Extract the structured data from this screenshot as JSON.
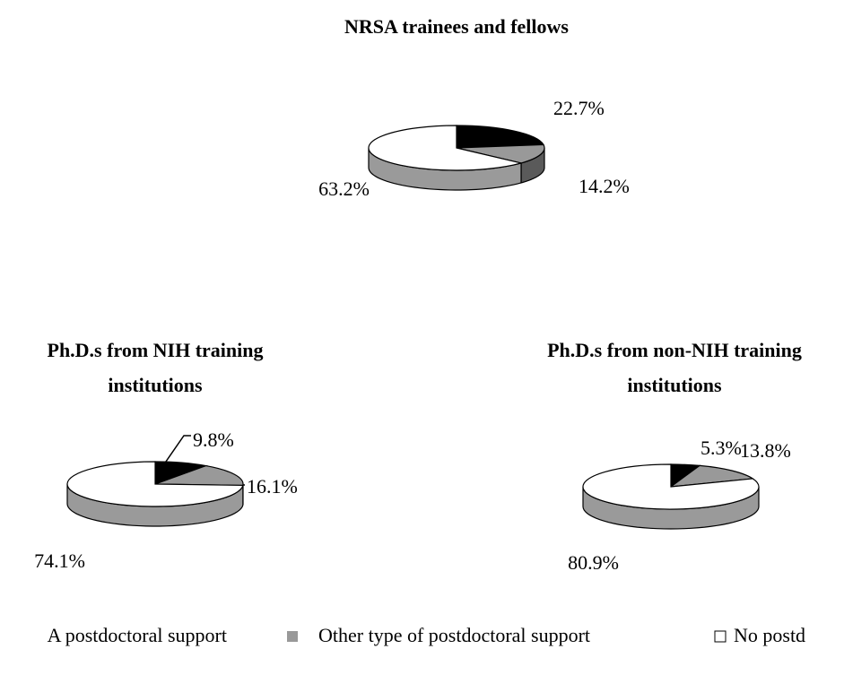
{
  "chart_data": [
    {
      "type": "pie",
      "title": [
        "NRSA trainees and fellows"
      ],
      "values": [
        22.7,
        14.2,
        63.2
      ],
      "value_labels": [
        "22.7%",
        "14.2%",
        "63.2%"
      ]
    },
    {
      "type": "pie",
      "title": [
        "Ph.D.s from NIH training",
        "institutions"
      ],
      "values": [
        9.8,
        16.1,
        74.1
      ],
      "value_labels": [
        "9.8%",
        "16.1%",
        "74.1%"
      ]
    },
    {
      "type": "pie",
      "title": [
        "Ph.D.s from non-NIH training",
        "institutions"
      ],
      "values": [
        5.3,
        13.8,
        80.9
      ],
      "value_labels": [
        "5.3%",
        "13.8%",
        "80.9%"
      ]
    }
  ],
  "legend": {
    "labels": [
      "A postdoctoral support",
      "Other type of postdoctoral support",
      "No postd"
    ],
    "colors": [
      "#000000",
      "#999999",
      "#ffffff"
    ]
  }
}
